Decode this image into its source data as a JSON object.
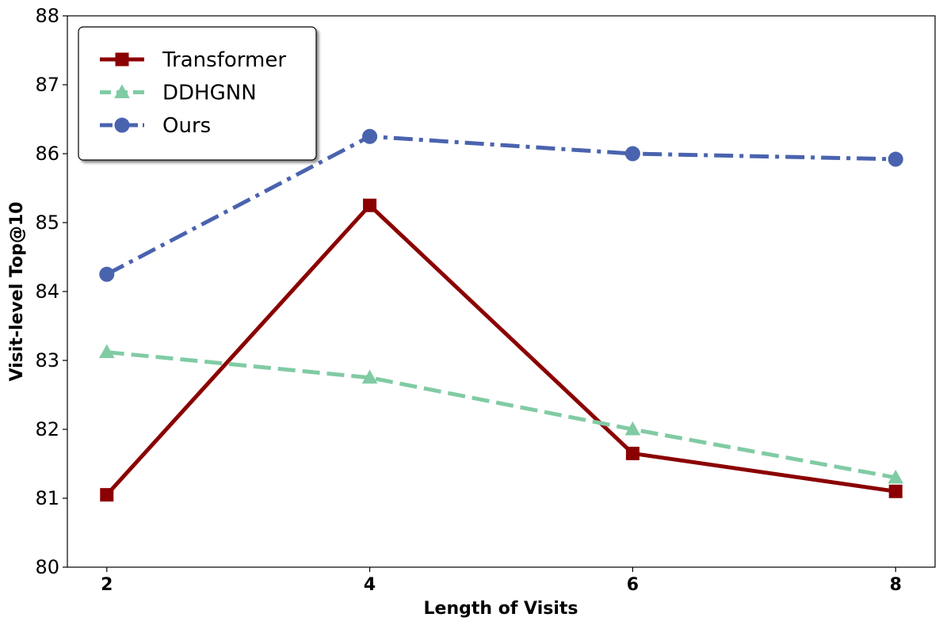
{
  "chart_data": {
    "type": "line",
    "xlabel": "Length of Visits",
    "ylabel": "Visit-level Top@10",
    "x": [
      2,
      4,
      6,
      8
    ],
    "xticks": [
      "2",
      "4",
      "6",
      "8"
    ],
    "xlim": [
      1.7,
      8.3
    ],
    "ylim": [
      80,
      88
    ],
    "yticks": [
      "80",
      "81",
      "82",
      "83",
      "84",
      "85",
      "86",
      "87",
      "88"
    ],
    "grid": false,
    "legend_position": "top-left",
    "series": [
      {
        "name": "Transformer",
        "values": [
          81.05,
          85.25,
          81.65,
          81.1
        ],
        "color": "#8b0000",
        "marker": "square",
        "linestyle": "solid"
      },
      {
        "name": "DDHGNN",
        "values": [
          83.12,
          82.75,
          82.0,
          81.3
        ],
        "color": "#80cba4",
        "marker": "triangle",
        "linestyle": "dashed"
      },
      {
        "name": "Ours",
        "values": [
          84.25,
          86.25,
          86.0,
          85.92
        ],
        "color": "#4a63ae",
        "marker": "circle",
        "linestyle": "dashdot"
      }
    ]
  }
}
